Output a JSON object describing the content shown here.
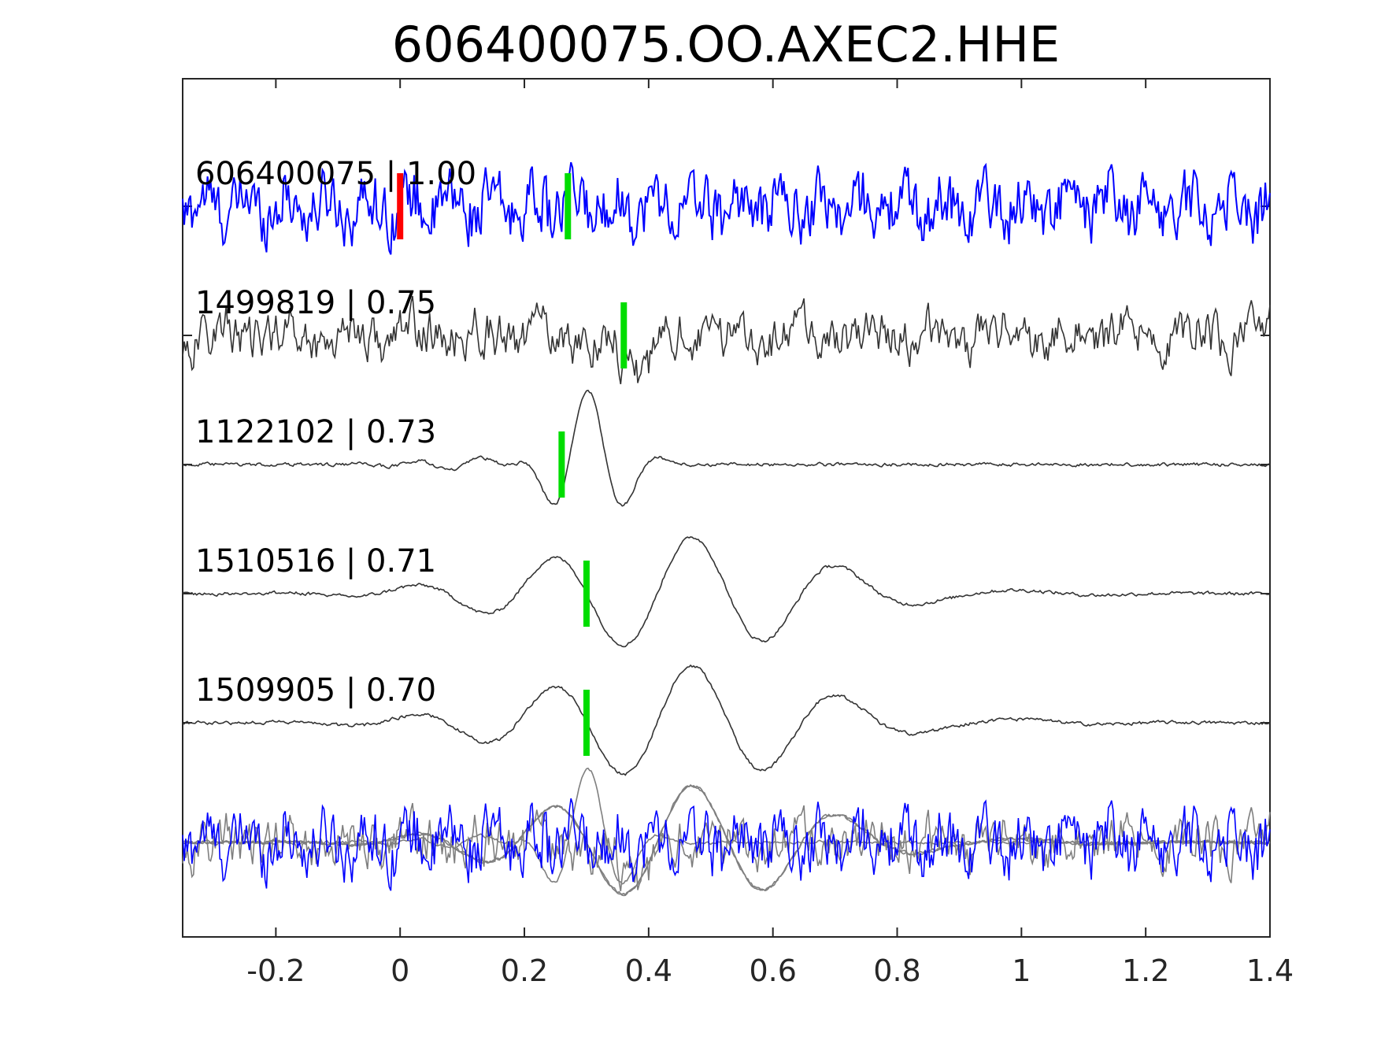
{
  "chart_data": {
    "type": "line",
    "title": "606400075.OO.AXEC2.HHE",
    "xlabel": "",
    "ylabel": "",
    "xlim": [
      -0.35,
      1.4
    ],
    "xticks": [
      -0.2,
      0,
      0.2,
      0.4,
      0.6,
      0.8,
      1,
      1.2,
      1.4
    ],
    "xtick_labels": [
      "-0.2",
      "0",
      "0.2",
      "0.4",
      "0.6",
      "0.8",
      "1",
      "1.2",
      "1.4"
    ],
    "grid": false,
    "reference_marker": {
      "time": 0.0,
      "color": "#ff0000"
    },
    "series": [
      {
        "name": "606400075 | 1.00",
        "color": "#0000ff",
        "style": "noisy",
        "pick": 0.27
      },
      {
        "name": "1499819 | 0.75",
        "color": "#333333",
        "style": "noisy-low",
        "pick": 0.36
      },
      {
        "name": "1122102 | 0.73",
        "color": "#333333",
        "style": "wavelet",
        "pick": 0.26
      },
      {
        "name": "1510516 | 0.71",
        "color": "#333333",
        "style": "slow",
        "pick": 0.3
      },
      {
        "name": "1509905 | 0.70",
        "color": "#333333",
        "style": "slow",
        "pick": 0.3
      }
    ],
    "overlay": {
      "colors": [
        "#0000ff",
        "#7f7f7f"
      ]
    },
    "pick_color": "#00dd00"
  }
}
